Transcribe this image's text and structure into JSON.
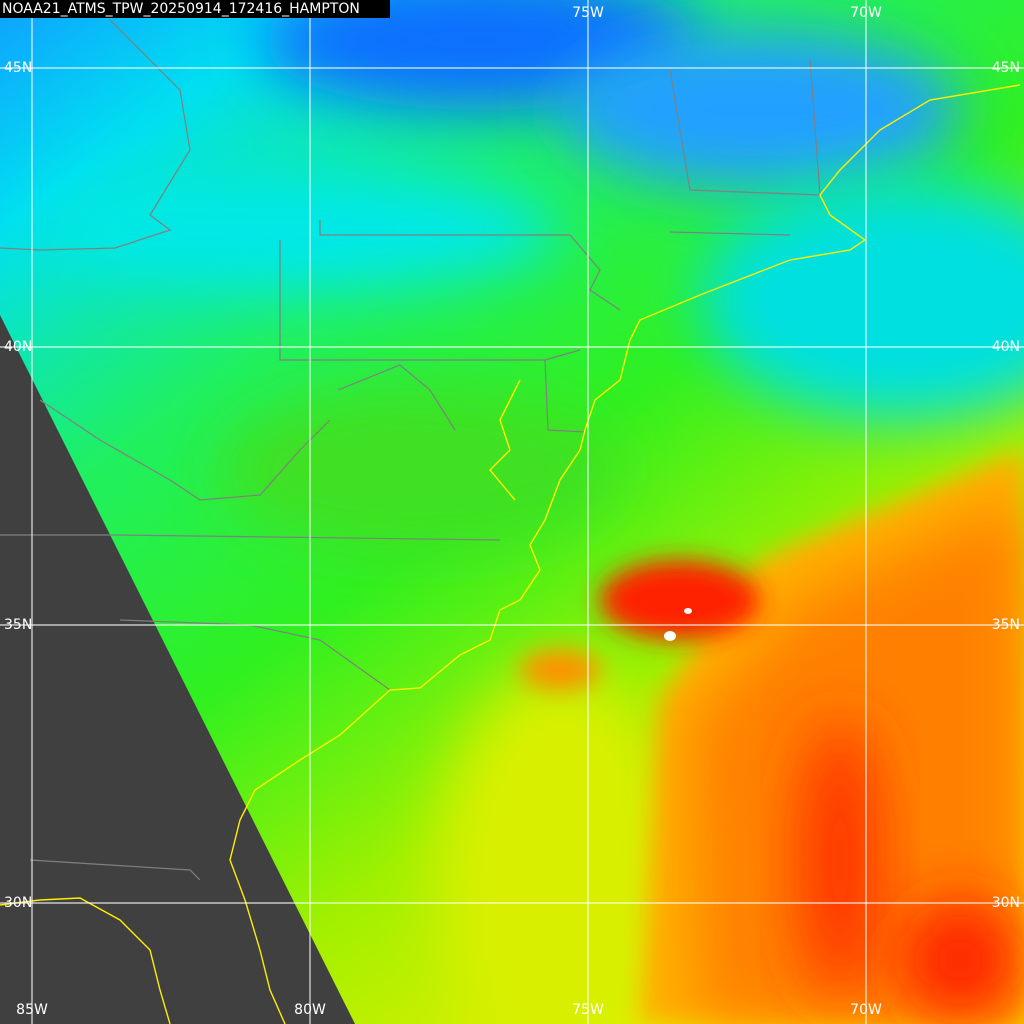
{
  "title": "NOAA21_ATMS_TPW_20250914_172416_HAMPTON",
  "grid_labels": {
    "top": [
      "75W",
      "70W"
    ],
    "left": [
      "45N",
      "40N",
      "35N",
      "30N"
    ],
    "right": [
      "45N",
      "40N",
      "35N",
      "30N"
    ],
    "bottom": [
      "85W",
      "80W",
      "75W",
      "70W"
    ]
  }
}
